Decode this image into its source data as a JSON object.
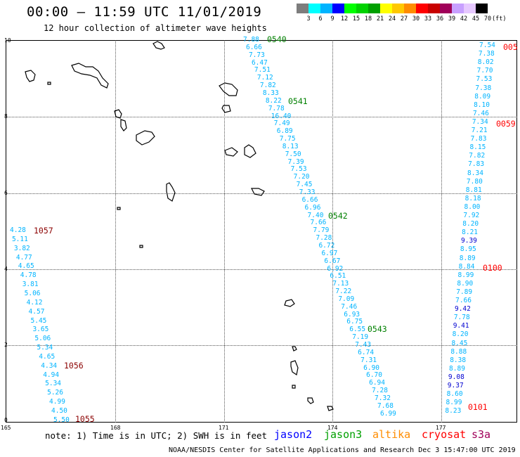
{
  "title": "00:00 – 11:59 UTC 11/01/2019",
  "subtitle": "12 hour collection of altimeter wave heights",
  "color_scale": {
    "unit_label": "(ft)",
    "labels": [
      "3",
      "6",
      "9",
      "12",
      "15",
      "18",
      "21",
      "24",
      "27",
      "30",
      "33",
      "36",
      "39",
      "42",
      "45",
      "70"
    ],
    "colors": [
      "#7d7d7d",
      "#00ffff",
      "#00b4ff",
      "#0000ff",
      "#00ff00",
      "#00d200",
      "#00a000",
      "#ffff00",
      "#ffc800",
      "#ff8c00",
      "#ff0000",
      "#c80000",
      "#a0005a",
      "#c8a0ff",
      "#e6c8ff",
      "#000000"
    ]
  },
  "y_axis": {
    "ticks": [
      "10",
      "8",
      "6",
      "4",
      "2",
      "0"
    ]
  },
  "x_axis": {
    "ticks": [
      "165",
      "168",
      "171",
      "174",
      "177"
    ]
  },
  "tracks": [
    {
      "pass_labels": [
        "0540",
        "0541",
        "0542",
        "0543"
      ],
      "color": "#00b4ff",
      "values": [
        "7.88",
        "6.66",
        "7.73",
        "6.47",
        "7.51",
        "7.12",
        "7.82",
        "8.33",
        "8.22",
        "7.78",
        "16.40",
        "7.49",
        "6.89",
        "7.75",
        "8.13",
        "7.50",
        "7.39",
        "7.53",
        "7.20",
        "7.45",
        "7.33",
        "6.66",
        "6.96",
        "7.40",
        "7.66",
        "7.79",
        "7.28",
        "6.72",
        "6.97",
        "6.67",
        "6.92",
        "6.51",
        "7.13",
        "7.22",
        "7.09",
        "7.46",
        "6.93",
        "6.75",
        "6.55",
        "7.19",
        "7.43",
        "6.74",
        "7.31",
        "6.90",
        "6.70",
        "6.94",
        "7.28",
        "7.32",
        "7.68",
        "6.99"
      ]
    },
    {
      "pass_labels": [
        "1057",
        "1056",
        "1055"
      ],
      "color": "#00b4ff",
      "values": [
        "4.28",
        "5.11",
        "3.82",
        "4.77",
        "4.65",
        "4.78",
        "3.81",
        "5.06",
        "4.12",
        "4.57",
        "5.45",
        "3.65",
        "5.06",
        "5.34",
        "4.65",
        "4.34",
        "4.94",
        "5.34",
        "5.26",
        "4.99",
        "4.50",
        "5.50"
      ]
    },
    {
      "pass_labels": [
        "005",
        "0059",
        "0100",
        "0101"
      ],
      "color": "#00b4ff",
      "values": [
        "7.54",
        "7.38",
        "8.02",
        "7.70",
        "7.53",
        "7.38",
        "8.09",
        "8.10",
        "7.46",
        "7.34",
        "7.21",
        "7.83",
        "8.15",
        "7.82",
        "7.83",
        "8.34",
        "7.80",
        "8.81",
        "8.18",
        "8.00",
        "7.92",
        "8.20",
        "8.21",
        "9.39",
        "8.95",
        "8.89",
        "8.84",
        "8.99",
        "8.90",
        "7.89",
        "7.66",
        "9.42",
        "7.78",
        "9.41",
        "8.20",
        "8.45",
        "8.88",
        "8.38",
        "8.89",
        "9.08",
        "9.37",
        "8.60",
        "8.99",
        "8.23"
      ]
    }
  ],
  "legend": {
    "note": "note:  1) Time is in UTC;  2) SWH is in feet",
    "satellites": [
      {
        "name": "jason2",
        "color": "#0000ff"
      },
      {
        "name": "jason3",
        "color": "#00a000"
      },
      {
        "name": "altika",
        "color": "#ff8c00"
      },
      {
        "name": "cryosat",
        "color": "#ff0000"
      },
      {
        "name": "s3a",
        "color": "#a0005a"
      }
    ]
  },
  "credit": "NOAA/NESDIS Center for Satellite Applications and Research    Dec  3 15:47:00 UTC 2019"
}
